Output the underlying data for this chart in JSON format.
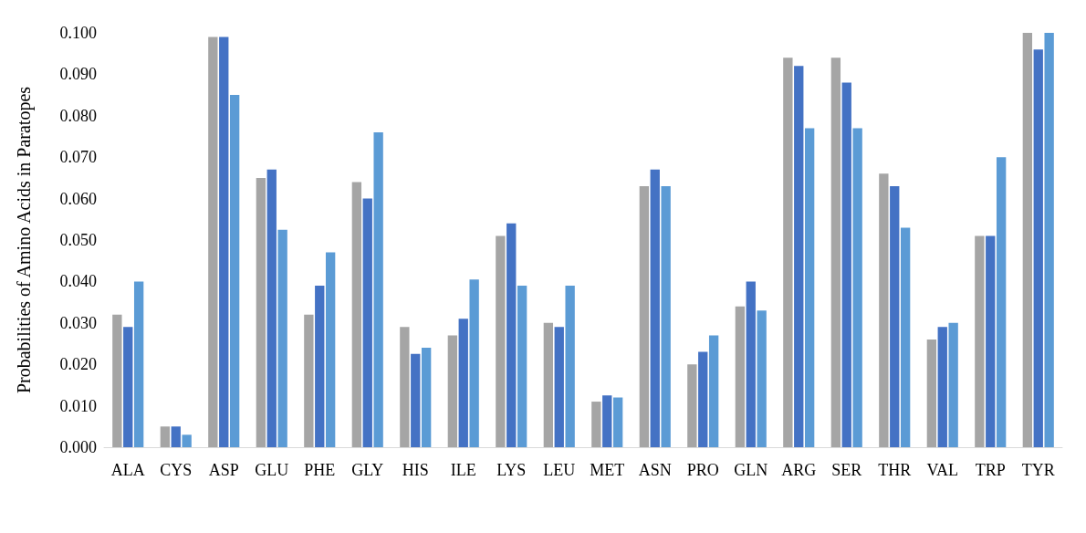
{
  "chart_data": {
    "type": "bar",
    "ylabel": "Probabilities of Amino Acids in Paratopes",
    "categories": [
      "ALA",
      "CYS",
      "ASP",
      "GLU",
      "PHE",
      "GLY",
      "HIS",
      "ILE",
      "LYS",
      "LEU",
      "MET",
      "ASN",
      "PRO",
      "GLN",
      "ARG",
      "SER",
      "THR",
      "VAL",
      "TRP",
      "TYR"
    ],
    "series": [
      {
        "color": "#a5a5a5",
        "values": [
          0.032,
          0.005,
          0.099,
          0.065,
          0.032,
          0.064,
          0.029,
          0.027,
          0.051,
          0.03,
          0.011,
          0.063,
          0.02,
          0.034,
          0.094,
          0.094,
          0.066,
          0.026,
          0.051,
          0.1
        ]
      },
      {
        "color": "#4472c4",
        "values": [
          0.029,
          0.005,
          0.099,
          0.067,
          0.039,
          0.06,
          0.0225,
          0.031,
          0.054,
          0.029,
          0.0125,
          0.067,
          0.023,
          0.04,
          0.092,
          0.088,
          0.063,
          0.029,
          0.051,
          0.096
        ]
      },
      {
        "color": "#5b9bd5",
        "values": [
          0.04,
          0.003,
          0.085,
          0.0525,
          0.047,
          0.076,
          0.024,
          0.0405,
          0.039,
          0.039,
          0.012,
          0.063,
          0.027,
          0.033,
          0.077,
          0.077,
          0.053,
          0.03,
          0.07,
          0.1
        ]
      }
    ],
    "ylim": [
      0,
      0.1
    ],
    "yticks": [
      {
        "value": 0,
        "label": "0.000"
      },
      {
        "value": 0.01,
        "label": "0.010"
      },
      {
        "value": 0.02,
        "label": "0.020"
      },
      {
        "value": 0.03,
        "label": "0.030"
      },
      {
        "value": 0.04,
        "label": "0.040"
      },
      {
        "value": 0.05,
        "label": "0.050"
      },
      {
        "value": 0.06,
        "label": "0.060"
      },
      {
        "value": 0.07,
        "label": "0.070"
      },
      {
        "value": 0.08,
        "label": "0.080"
      },
      {
        "value": 0.09,
        "label": "0.090"
      },
      {
        "value": 0.1,
        "label": "0.100"
      }
    ],
    "grid": false
  }
}
